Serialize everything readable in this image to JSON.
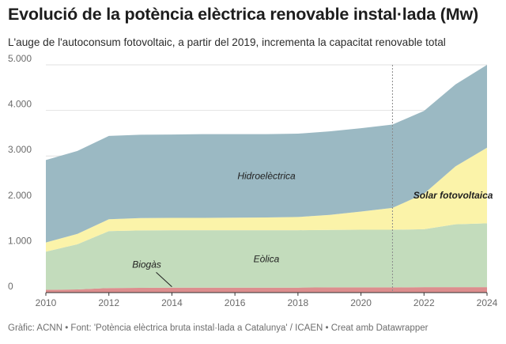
{
  "title": "Evolució de la potència elèctrica renovable instal·lada (Mw)",
  "subtitle": "L'auge de l'autoconsum fotovoltaic, a partir del 2019, incrementa la capacitat renovable total",
  "footer": "Gràfic: ACNN • Font: 'Potència elèctrica bruta instal·lada a Catalunya' / ICAEN • Creat amb Datawrapper",
  "chart_data": {
    "type": "area",
    "stacked": true,
    "x": [
      2010,
      2011,
      2012,
      2013,
      2014,
      2015,
      2016,
      2017,
      2018,
      2019,
      2020,
      2021,
      2022,
      2023,
      2024
    ],
    "xticks": [
      "2010",
      "2012",
      "2014",
      "2016",
      "2018",
      "2020",
      "2022",
      "2024"
    ],
    "yticks": [
      "0",
      "1.000",
      "2.000",
      "3.000",
      "4.000",
      "5.000"
    ],
    "ylim": [
      0,
      5000
    ],
    "xlim": [
      2010,
      2024
    ],
    "grid": true,
    "marker_line_x": 2021,
    "series": [
      {
        "name": "Biogàs",
        "color": "#dd8e8e",
        "values": [
          60,
          70,
          100,
          105,
          110,
          110,
          110,
          110,
          110,
          115,
          115,
          115,
          120,
          120,
          120
        ]
      },
      {
        "name": "Eòlica",
        "color": "#c3dcbc",
        "values": [
          840,
          990,
          1250,
          1260,
          1260,
          1260,
          1260,
          1260,
          1260,
          1260,
          1265,
          1265,
          1270,
          1380,
          1400
        ]
      },
      {
        "name": "Solar fotovoltaica",
        "color": "#fbf3a9",
        "values": [
          200,
          230,
          260,
          270,
          270,
          270,
          275,
          280,
          290,
          330,
          400,
          480,
          780,
          1270,
          1660
        ]
      },
      {
        "name": "Hidroelèctrica",
        "color": "#9bb9c3",
        "values": [
          1810,
          1820,
          1830,
          1830,
          1830,
          1840,
          1835,
          1830,
          1830,
          1835,
          1830,
          1830,
          1820,
          1800,
          1820
        ]
      }
    ]
  }
}
